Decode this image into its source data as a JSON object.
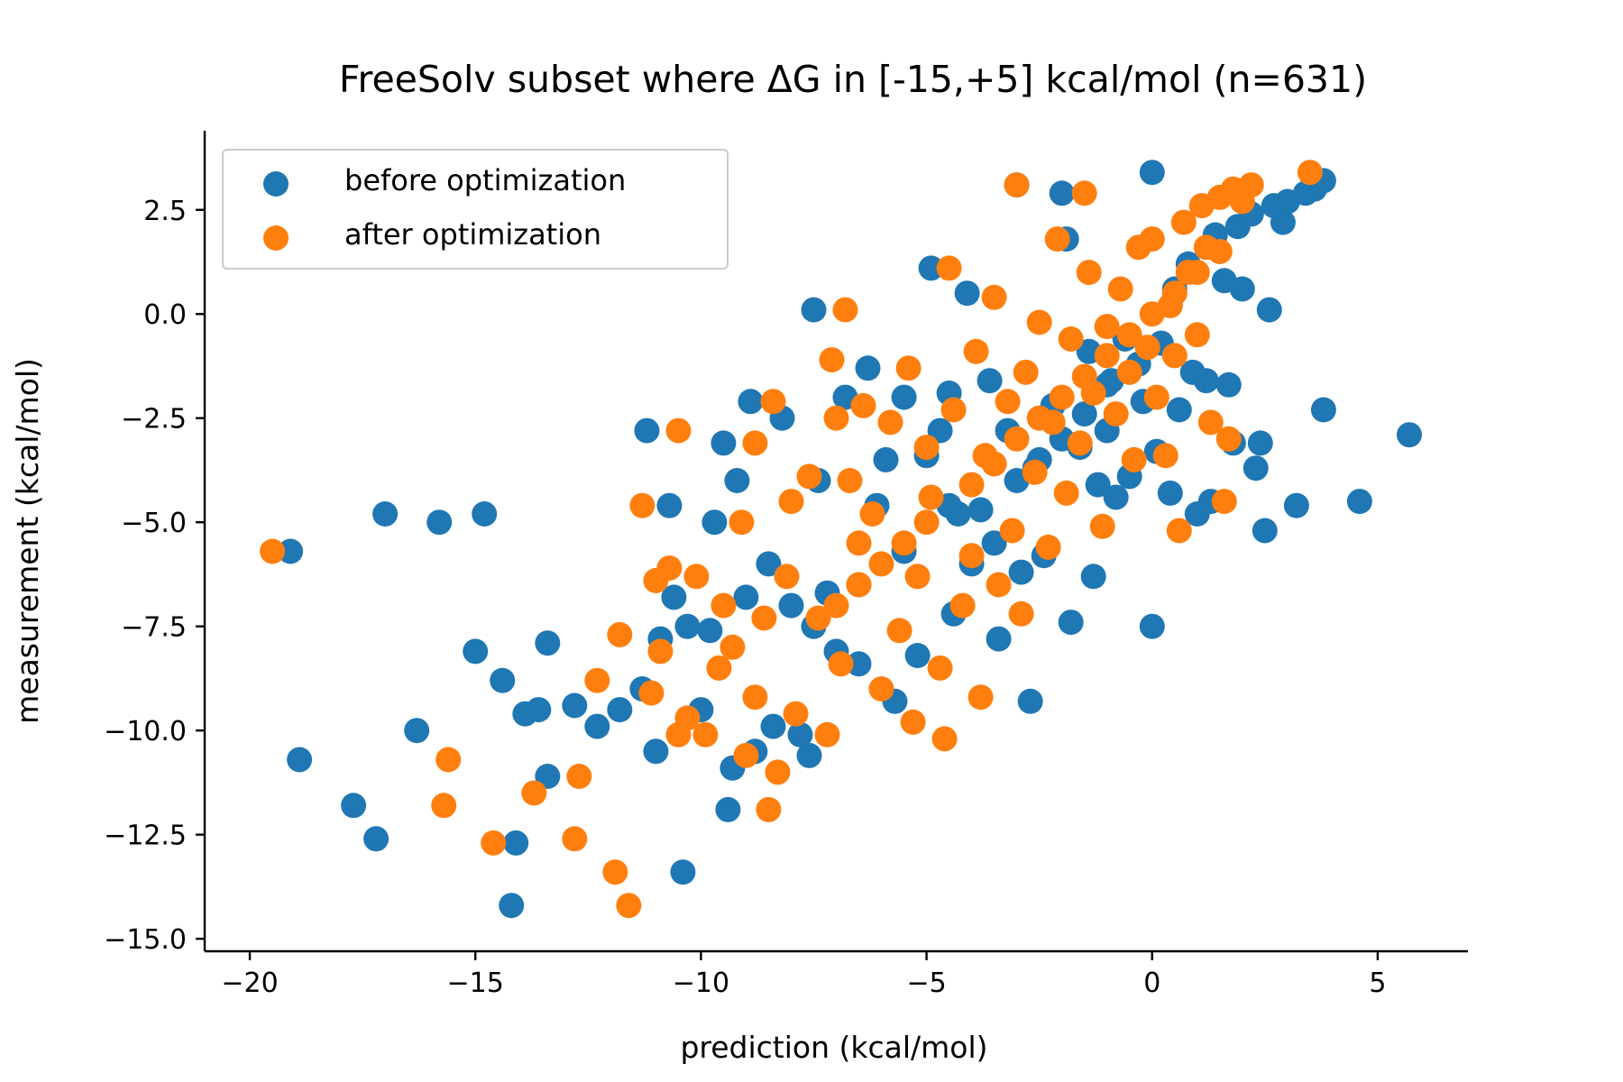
{
  "chart_data": {
    "type": "scatter",
    "title": "FreeSolv subset where ΔG in [-15,+5] kcal/mol (n=631)",
    "xlabel": "prediction (kcal/mol)",
    "ylabel": "measurement (kcal/mol)",
    "xlim": [
      -21,
      7
    ],
    "ylim": [
      -15.3,
      4.4
    ],
    "xticks": [
      -20,
      -15,
      -10,
      -5,
      0,
      5
    ],
    "yticks": [
      -15.0,
      -12.5,
      -10.0,
      -7.5,
      -5.0,
      -2.5,
      0.0,
      2.5
    ],
    "xtick_labels": [
      "−20",
      "−15",
      "−10",
      "−5",
      "0",
      "5"
    ],
    "ytick_labels": [
      "−15.0",
      "−12.5",
      "−10.0",
      "−7.5",
      "−5.0",
      "−2.5",
      "0.0",
      "2.5"
    ],
    "grid": false,
    "legend": "top-left",
    "series": [
      {
        "name": "before optimization",
        "color": "#1f77b4",
        "points": [
          [
            -19.1,
            -5.7
          ],
          [
            -18.9,
            -10.7
          ],
          [
            -17.7,
            -11.8
          ],
          [
            -17.2,
            -12.6
          ],
          [
            -17.0,
            -4.8
          ],
          [
            -16.3,
            -10.0
          ],
          [
            -15.8,
            -5.0
          ],
          [
            -15.0,
            -8.1
          ],
          [
            -14.8,
            -4.8
          ],
          [
            -14.4,
            -8.8
          ],
          [
            -14.2,
            -14.2
          ],
          [
            -14.1,
            -12.7
          ],
          [
            -13.9,
            -9.6
          ],
          [
            -13.6,
            -9.5
          ],
          [
            -13.4,
            -11.1
          ],
          [
            -13.4,
            -7.9
          ],
          [
            -12.8,
            -9.4
          ],
          [
            -12.3,
            -9.9
          ],
          [
            -11.8,
            -9.5
          ],
          [
            -11.3,
            -9.0
          ],
          [
            -11.2,
            -2.8
          ],
          [
            -11.0,
            -10.5
          ],
          [
            -10.9,
            -7.8
          ],
          [
            -10.7,
            -4.6
          ],
          [
            -10.6,
            -6.8
          ],
          [
            -10.4,
            -13.4
          ],
          [
            -10.3,
            -7.5
          ],
          [
            -10.0,
            -9.5
          ],
          [
            -9.8,
            -7.6
          ],
          [
            -9.7,
            -5.0
          ],
          [
            -9.5,
            -3.1
          ],
          [
            -9.4,
            -11.9
          ],
          [
            -9.3,
            -10.9
          ],
          [
            -9.2,
            -4.0
          ],
          [
            -9.0,
            -6.8
          ],
          [
            -8.9,
            -2.1
          ],
          [
            -8.8,
            -10.5
          ],
          [
            -8.5,
            -6.0
          ],
          [
            -8.4,
            -9.9
          ],
          [
            -8.2,
            -2.5
          ],
          [
            -8.0,
            -7.0
          ],
          [
            -7.8,
            -10.1
          ],
          [
            -7.6,
            -10.6
          ],
          [
            -7.5,
            0.1
          ],
          [
            -7.4,
            -4.0
          ],
          [
            -7.2,
            -6.7
          ],
          [
            -7.0,
            -8.1
          ],
          [
            -6.8,
            -2.0
          ],
          [
            -6.5,
            -8.4
          ],
          [
            -6.3,
            -1.3
          ],
          [
            -6.1,
            -4.6
          ],
          [
            -5.9,
            -3.5
          ],
          [
            -5.7,
            -9.3
          ],
          [
            -5.5,
            -2.0
          ],
          [
            -5.2,
            -8.2
          ],
          [
            -5.0,
            -3.4
          ],
          [
            -4.9,
            1.1
          ],
          [
            -4.7,
            -2.8
          ],
          [
            -4.5,
            -1.9
          ],
          [
            -4.4,
            -7.2
          ],
          [
            -4.3,
            -4.8
          ],
          [
            -4.1,
            0.5
          ],
          [
            -4.0,
            -6.0
          ],
          [
            -3.8,
            -4.7
          ],
          [
            -3.6,
            -1.6
          ],
          [
            -3.5,
            -5.5
          ],
          [
            -3.4,
            -7.8
          ],
          [
            -3.2,
            -2.8
          ],
          [
            -3.0,
            3.1
          ],
          [
            -2.9,
            -6.2
          ],
          [
            -2.7,
            -9.3
          ],
          [
            -2.6,
            -3.7
          ],
          [
            -2.4,
            -5.8
          ],
          [
            -2.2,
            -2.2
          ],
          [
            -2.0,
            2.9
          ],
          [
            -1.9,
            1.8
          ],
          [
            -1.8,
            -7.4
          ],
          [
            -1.6,
            -3.2
          ],
          [
            -1.4,
            -0.9
          ],
          [
            -1.3,
            -6.3
          ],
          [
            -1.2,
            -4.1
          ],
          [
            -1.0,
            -2.8
          ],
          [
            -0.9,
            -1.6
          ],
          [
            -0.8,
            -4.4
          ],
          [
            -0.6,
            -0.6
          ],
          [
            -0.5,
            -3.9
          ],
          [
            -0.3,
            -1.2
          ],
          [
            -0.2,
            -2.1
          ],
          [
            0.0,
            3.4
          ],
          [
            0.0,
            -7.5
          ],
          [
            0.1,
            -3.3
          ],
          [
            0.2,
            -0.7
          ],
          [
            0.4,
            -4.3
          ],
          [
            0.5,
            0.6
          ],
          [
            0.6,
            -2.3
          ],
          [
            0.8,
            1.2
          ],
          [
            0.9,
            -1.4
          ],
          [
            1.0,
            -4.8
          ],
          [
            1.2,
            -1.6
          ],
          [
            1.3,
            -4.5
          ],
          [
            1.4,
            1.9
          ],
          [
            1.6,
            0.8
          ],
          [
            1.7,
            -1.7
          ],
          [
            1.8,
            -3.1
          ],
          [
            1.9,
            2.1
          ],
          [
            2.0,
            0.6
          ],
          [
            2.2,
            2.4
          ],
          [
            2.3,
            -3.7
          ],
          [
            2.4,
            -3.1
          ],
          [
            2.5,
            -5.2
          ],
          [
            2.6,
            0.1
          ],
          [
            2.7,
            2.6
          ],
          [
            2.9,
            2.2
          ],
          [
            3.0,
            2.7
          ],
          [
            3.2,
            -4.6
          ],
          [
            3.4,
            2.9
          ],
          [
            3.6,
            3.0
          ],
          [
            3.8,
            3.2
          ],
          [
            3.8,
            -2.3
          ],
          [
            4.6,
            -4.5
          ],
          [
            5.7,
            -2.9
          ],
          [
            -3.0,
            -4.0
          ],
          [
            -2.5,
            -3.5
          ],
          [
            -2.0,
            -3.0
          ],
          [
            -1.5,
            -2.4
          ],
          [
            -1.0,
            -1.7
          ],
          [
            -4.5,
            -4.6
          ],
          [
            -5.5,
            -5.7
          ],
          [
            -6.5,
            -6.5
          ],
          [
            -7.5,
            -7.5
          ]
        ]
      },
      {
        "name": "after optimization",
        "color": "#ff7f0e",
        "points": [
          [
            -19.5,
            -5.7
          ],
          [
            -15.6,
            -10.7
          ],
          [
            -15.7,
            -11.8
          ],
          [
            -14.6,
            -12.7
          ],
          [
            -13.7,
            -11.5
          ],
          [
            -12.7,
            -11.1
          ],
          [
            -12.8,
            -12.6
          ],
          [
            -12.3,
            -8.8
          ],
          [
            -11.9,
            -13.4
          ],
          [
            -11.6,
            -14.2
          ],
          [
            -11.8,
            -7.7
          ],
          [
            -11.3,
            -4.6
          ],
          [
            -11.1,
            -9.1
          ],
          [
            -11.0,
            -6.4
          ],
          [
            -10.9,
            -8.1
          ],
          [
            -10.7,
            -6.1
          ],
          [
            -10.5,
            -10.1
          ],
          [
            -10.5,
            -2.8
          ],
          [
            -10.3,
            -9.7
          ],
          [
            -10.1,
            -6.3
          ],
          [
            -9.9,
            -10.1
          ],
          [
            -9.6,
            -8.5
          ],
          [
            -9.5,
            -7.0
          ],
          [
            -9.3,
            -8.0
          ],
          [
            -9.1,
            -5.0
          ],
          [
            -9.0,
            -10.6
          ],
          [
            -8.8,
            -9.2
          ],
          [
            -8.8,
            -3.1
          ],
          [
            -8.6,
            -7.3
          ],
          [
            -8.5,
            -11.9
          ],
          [
            -8.4,
            -2.1
          ],
          [
            -8.3,
            -11.0
          ],
          [
            -8.1,
            -6.3
          ],
          [
            -8.0,
            -4.5
          ],
          [
            -7.9,
            -9.6
          ],
          [
            -7.6,
            -3.9
          ],
          [
            -7.4,
            -7.3
          ],
          [
            -7.2,
            -10.1
          ],
          [
            -7.1,
            -1.1
          ],
          [
            -7.0,
            -2.5
          ],
          [
            -6.9,
            -8.4
          ],
          [
            -6.8,
            0.1
          ],
          [
            -6.7,
            -4.0
          ],
          [
            -6.5,
            -5.5
          ],
          [
            -6.4,
            -2.2
          ],
          [
            -6.2,
            -4.8
          ],
          [
            -6.0,
            -9.0
          ],
          [
            -5.8,
            -2.6
          ],
          [
            -5.6,
            -7.6
          ],
          [
            -5.4,
            -1.3
          ],
          [
            -5.3,
            -9.8
          ],
          [
            -5.2,
            -6.3
          ],
          [
            -5.0,
            -3.2
          ],
          [
            -4.9,
            -4.4
          ],
          [
            -4.7,
            -8.5
          ],
          [
            -4.6,
            -10.2
          ],
          [
            -4.5,
            1.1
          ],
          [
            -4.4,
            -2.3
          ],
          [
            -4.2,
            -7.0
          ],
          [
            -4.0,
            -5.8
          ],
          [
            -3.9,
            -0.9
          ],
          [
            -3.8,
            -9.2
          ],
          [
            -3.7,
            -3.4
          ],
          [
            -3.5,
            0.4
          ],
          [
            -3.4,
            -6.5
          ],
          [
            -3.2,
            -2.1
          ],
          [
            -3.1,
            -5.2
          ],
          [
            -3.0,
            3.1
          ],
          [
            -2.9,
            -7.2
          ],
          [
            -2.8,
            -1.4
          ],
          [
            -2.6,
            -3.8
          ],
          [
            -2.5,
            -0.2
          ],
          [
            -2.3,
            -5.6
          ],
          [
            -2.2,
            -2.6
          ],
          [
            -2.1,
            1.8
          ],
          [
            -1.9,
            -4.3
          ],
          [
            -1.8,
            -0.6
          ],
          [
            -1.6,
            -3.1
          ],
          [
            -1.5,
            2.9
          ],
          [
            -1.4,
            1.0
          ],
          [
            -1.3,
            -1.9
          ],
          [
            -1.1,
            -5.1
          ],
          [
            -1.0,
            -0.3
          ],
          [
            -0.8,
            -2.4
          ],
          [
            -0.7,
            0.6
          ],
          [
            -0.5,
            -1.4
          ],
          [
            -0.4,
            -3.5
          ],
          [
            -0.3,
            1.6
          ],
          [
            -0.1,
            -0.8
          ],
          [
            0.0,
            1.8
          ],
          [
            0.1,
            -2.0
          ],
          [
            0.3,
            -3.4
          ],
          [
            0.4,
            0.2
          ],
          [
            0.5,
            -1.0
          ],
          [
            0.6,
            -5.2
          ],
          [
            0.7,
            2.2
          ],
          [
            0.8,
            1.0
          ],
          [
            1.0,
            -0.5
          ],
          [
            1.1,
            2.6
          ],
          [
            1.2,
            1.6
          ],
          [
            1.3,
            -2.6
          ],
          [
            1.5,
            2.8
          ],
          [
            1.6,
            -4.5
          ],
          [
            1.7,
            -3.0
          ],
          [
            1.8,
            3.0
          ],
          [
            2.0,
            2.7
          ],
          [
            2.2,
            3.1
          ],
          [
            3.5,
            3.4
          ],
          [
            -4.0,
            -4.1
          ],
          [
            -3.5,
            -3.6
          ],
          [
            -3.0,
            -3.0
          ],
          [
            -2.5,
            -2.5
          ],
          [
            -2.0,
            -2.0
          ],
          [
            -1.5,
            -1.5
          ],
          [
            -1.0,
            -1.0
          ],
          [
            -0.5,
            -0.5
          ],
          [
            0.0,
            0.0
          ],
          [
            0.5,
            0.5
          ],
          [
            1.0,
            1.0
          ],
          [
            1.5,
            1.5
          ],
          [
            -5.0,
            -5.0
          ],
          [
            -5.5,
            -5.5
          ],
          [
            -6.0,
            -6.0
          ],
          [
            -6.5,
            -6.5
          ],
          [
            -7.0,
            -7.0
          ]
        ]
      }
    ]
  }
}
